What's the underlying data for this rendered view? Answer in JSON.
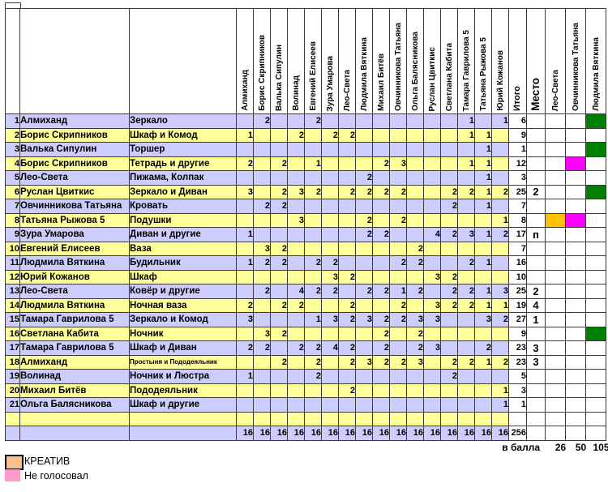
{
  "table": {
    "total_header": "Итого",
    "place_header": "Место",
    "voter_columns": [
      "Алмиханд",
      "Борис Скрипников",
      "Валька Сипулин",
      "Волинад",
      "Евгений Елисеев",
      "Зура Умарова",
      "Лео-Света",
      "Людмила Вяткина",
      "Михаил Битёв",
      "Овчинникова Татьяна",
      "Ольга Балясникова",
      "Руслан Цвиткис",
      "Светлана Кабита",
      "Тамара Гаврилова 5",
      "Татьяна Рыжова 5",
      "Юрий Кожанов"
    ],
    "extra_columns": [
      "Лео-Света",
      "Овчинникова Татьяна",
      "Людмила Вяткина"
    ],
    "rows": [
      {
        "num": "1",
        "author": "Алмиханд",
        "item": "Зеркало",
        "votes": [
          "",
          "2",
          "",
          "",
          "2",
          "",
          "",
          "",
          "",
          "",
          "",
          "",
          "",
          "1",
          "",
          "1"
        ],
        "total": "6",
        "place": "",
        "extra": [
          "",
          "",
          "green"
        ]
      },
      {
        "num": "2",
        "author": "Борис Скрипников",
        "item": "Шкаф и Комод",
        "votes": [
          "1",
          "",
          "",
          "2",
          "",
          "2",
          "2",
          "",
          "",
          "",
          "",
          "",
          "",
          "1",
          "1",
          ""
        ],
        "total": "9",
        "place": "",
        "extra": [
          "",
          "",
          ""
        ]
      },
      {
        "num": "3",
        "author": "Валька Сипулин",
        "item": "Торшер",
        "votes": [
          "",
          "",
          "",
          "",
          "",
          "",
          "",
          "",
          "",
          "",
          "",
          "",
          "",
          "",
          "1",
          ""
        ],
        "total": "1",
        "place": "",
        "extra": [
          "",
          "",
          "green"
        ]
      },
      {
        "num": "4",
        "author": "Борис Скрипников",
        "item": "Тетрадь и другие",
        "votes": [
          "2",
          "",
          "2",
          "",
          "1",
          "",
          "",
          "",
          "2",
          "3",
          "",
          "",
          "",
          "1",
          "1",
          ""
        ],
        "total": "12",
        "place": "",
        "extra": [
          "",
          "magenta",
          ""
        ]
      },
      {
        "num": "5",
        "author": "Лео-Света",
        "item": "Пижама, Колпак",
        "votes": [
          "",
          "",
          "",
          "",
          "",
          "",
          "",
          "2",
          "",
          "",
          "",
          "",
          "",
          "",
          "1",
          ""
        ],
        "total": "3",
        "place": "",
        "extra": [
          "",
          "",
          ""
        ]
      },
      {
        "num": "6",
        "author": "Руслан Цвиткис",
        "item": "Зеркало и Диван",
        "votes": [
          "3",
          "",
          "2",
          "3",
          "2",
          "",
          "2",
          "2",
          "2",
          "2",
          "",
          "",
          "2",
          "2",
          "1",
          "2"
        ],
        "total": "25",
        "place": "2",
        "extra": [
          "",
          "",
          "green"
        ]
      },
      {
        "num": "7",
        "author": "Овчинникова Татьяна",
        "item": "Кровать",
        "votes": [
          "",
          "2",
          "2",
          "",
          "",
          "",
          "",
          "",
          "",
          "",
          "",
          "",
          "2",
          "",
          "1",
          ""
        ],
        "total": "7",
        "place": "",
        "extra": [
          "",
          "",
          ""
        ]
      },
      {
        "num": "8",
        "author": "Татьяна Рыжова 5",
        "item": "Подушки",
        "votes": [
          "",
          "",
          "",
          "3",
          "",
          "",
          "",
          "2",
          "",
          "2",
          "",
          "",
          "",
          "",
          "",
          "1"
        ],
        "total": "8",
        "place": "",
        "extra": [
          "gold",
          "magenta",
          ""
        ]
      },
      {
        "num": "9",
        "author": "Зура Умарова",
        "item": "Диван и другие",
        "votes": [
          "1",
          "",
          "",
          "",
          "",
          "",
          "",
          "2",
          "2",
          "",
          "",
          "4",
          "2",
          "3",
          "1",
          "2"
        ],
        "total": "17",
        "place": "п",
        "extra": [
          "",
          "",
          ""
        ]
      },
      {
        "num": "10",
        "author": "Евгений Елисеев",
        "item": "Ваза",
        "votes": [
          "",
          "3",
          "2",
          "",
          "",
          "",
          "",
          "",
          "",
          "",
          "2",
          "",
          "",
          "",
          "",
          ""
        ],
        "total": "7",
        "place": "",
        "extra": [
          "",
          "",
          ""
        ]
      },
      {
        "num": "11",
        "author": "Людмила Вяткина",
        "item": "Будильник",
        "votes": [
          "1",
          "2",
          "2",
          "",
          "2",
          "2",
          "",
          "",
          "",
          "2",
          "2",
          "",
          "",
          "2",
          "1",
          ""
        ],
        "total": "16",
        "place": "",
        "extra": [
          "",
          "",
          ""
        ]
      },
      {
        "num": "12",
        "author": "Юрий Кожанов",
        "item": "Шкаф",
        "votes": [
          "",
          "",
          "",
          "",
          "",
          "3",
          "2",
          "",
          "",
          "",
          "",
          "3",
          "2",
          "",
          "",
          ""
        ],
        "total": "10",
        "place": "",
        "extra": [
          "",
          "",
          ""
        ]
      },
      {
        "num": "13",
        "author": "Лео-Света",
        "item": "Ковёр и другие",
        "votes": [
          "",
          "2",
          "",
          "4",
          "2",
          "2",
          "",
          "2",
          "2",
          "1",
          "2",
          "",
          "2",
          "2",
          "1",
          "3"
        ],
        "total": "25",
        "place": "2",
        "extra": [
          "",
          "",
          ""
        ]
      },
      {
        "num": "14",
        "author": "Людмила Вяткина",
        "item": "Ночная ваза",
        "votes": [
          "2",
          "",
          "2",
          "2",
          "",
          "",
          "2",
          "",
          "",
          "2",
          "",
          "3",
          "2",
          "2",
          "1",
          "1"
        ],
        "total": "19",
        "place": "4",
        "extra": [
          "",
          "",
          ""
        ]
      },
      {
        "num": "15",
        "author": "Тамара Гаврилова 5",
        "item": "Зеркало и Комод",
        "votes": [
          "3",
          "",
          "",
          "",
          "1",
          "3",
          "2",
          "3",
          "2",
          "2",
          "3",
          "3",
          "",
          "",
          "3",
          "2"
        ],
        "total": "27",
        "place": "1",
        "extra": [
          "",
          "",
          ""
        ]
      },
      {
        "num": "16",
        "author": "Светлана Кабита",
        "item": "Ночник",
        "votes": [
          "",
          "3",
          "2",
          "",
          "",
          "",
          "",
          "",
          "2",
          "",
          "2",
          "",
          "",
          "",
          "",
          ""
        ],
        "total": "9",
        "place": "",
        "extra": [
          "",
          "",
          "green"
        ]
      },
      {
        "num": "17",
        "author": "Тамара Гаврилова 5",
        "item": "Шкаф и Диван",
        "votes": [
          "2",
          "2",
          "",
          "2",
          "2",
          "4",
          "2",
          "",
          "2",
          "",
          "2",
          "3",
          "",
          "",
          "2",
          ""
        ],
        "total": "23",
        "place": "3",
        "extra": [
          "",
          "",
          ""
        ]
      },
      {
        "num": "18",
        "author": "Алмиханд",
        "item": "Простыня и Пододеяльник",
        "item_small": true,
        "votes": [
          "",
          "",
          "2",
          "",
          "2",
          "",
          "2",
          "3",
          "2",
          "2",
          "3",
          "",
          "2",
          "2",
          "1",
          "2"
        ],
        "total": "23",
        "place": "3",
        "extra": [
          "",
          "",
          ""
        ]
      },
      {
        "num": "19",
        "author": "Волинад",
        "item": "Ночник и Люстра",
        "votes": [
          "1",
          "",
          "",
          "",
          "2",
          "",
          "",
          "",
          "",
          "",
          "",
          "",
          "2",
          "",
          "",
          ""
        ],
        "total": "5",
        "place": "",
        "extra": [
          "",
          "",
          ""
        ]
      },
      {
        "num": "20",
        "author": "Михаил Битёв",
        "item": "Пододеяльник",
        "votes": [
          "",
          "",
          "",
          "",
          "",
          "",
          "2",
          "",
          "",
          "",
          "",
          "",
          "",
          "",
          "",
          "1"
        ],
        "total": "3",
        "place": "",
        "extra": [
          "",
          "",
          ""
        ]
      },
      {
        "num": "21",
        "author": "Ольга Балясникова",
        "item": "Шкаф и другие",
        "votes": [
          "",
          "",
          "",
          "",
          "",
          "",
          "",
          "",
          "",
          "",
          "",
          "",
          "",
          "",
          "",
          "1"
        ],
        "total": "1",
        "place": "",
        "extra": [
          "",
          "",
          ""
        ]
      }
    ],
    "column_totals": [
      "16",
      "16",
      "16",
      "16",
      "16",
      "16",
      "16",
      "16",
      "16",
      "16",
      "16",
      "16",
      "16",
      "16",
      "16",
      "16"
    ],
    "grand_total": "256",
    "footer": {
      "label": "в балла",
      "values": [
        "26",
        "50",
        "105"
      ]
    }
  },
  "legend": [
    {
      "label": "КРЕАТИВ",
      "color": "#FAC090",
      "border_black": true
    },
    {
      "label": "Не голосовал",
      "color": "#FF99CC",
      "border_black": false
    }
  ],
  "colors": {
    "lavender": "#CCCCFF",
    "yellow": "#FFFF99",
    "green": "#008000",
    "magenta": "#FF00FF",
    "gold": "#FFC000",
    "legend_creative": "#FAC090",
    "legend_no_vote": "#FF99CC",
    "border": "#3a3a3a"
  }
}
